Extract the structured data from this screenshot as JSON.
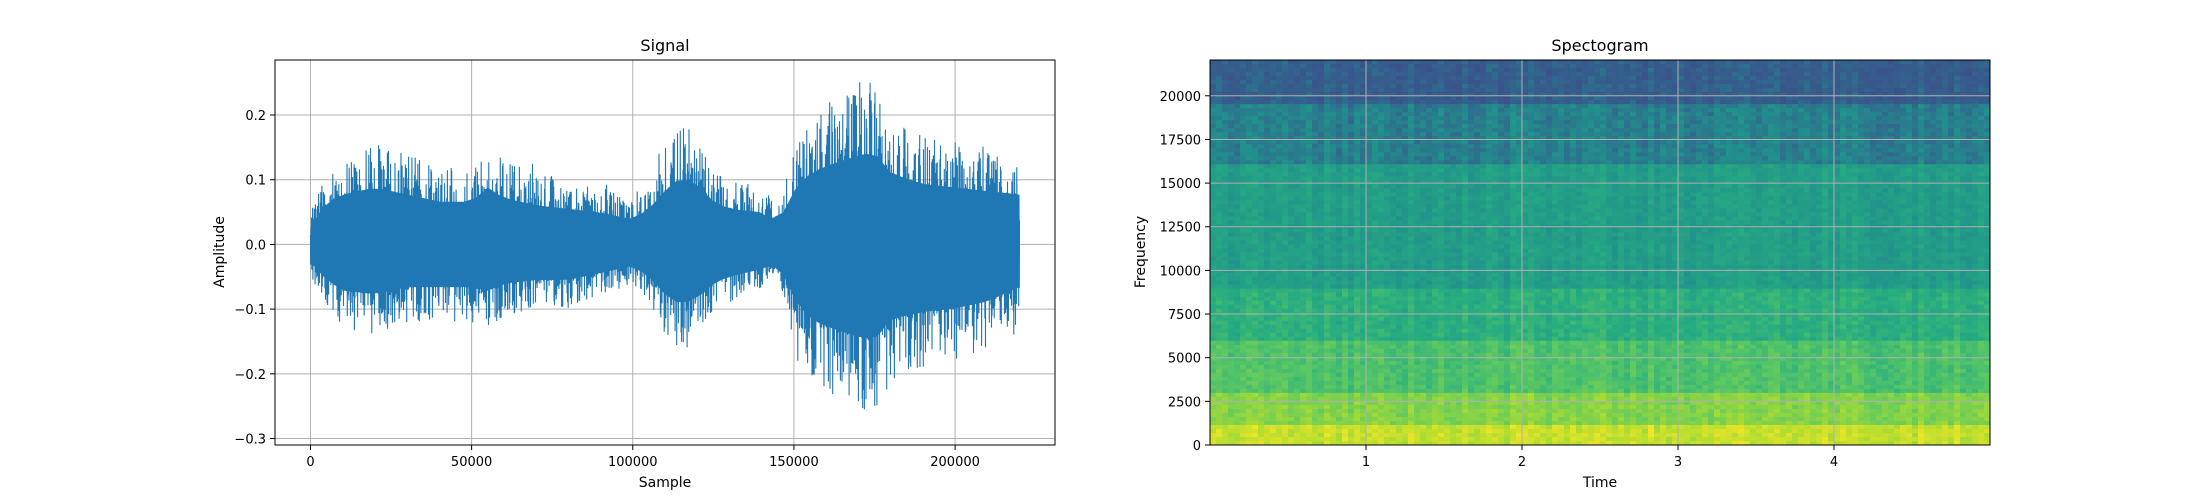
{
  "chart_data": [
    {
      "type": "line",
      "title": "Signal",
      "xlabel": "Sample",
      "ylabel": "Amplitude",
      "xlim": [
        -11000,
        231000
      ],
      "ylim": [
        -0.31,
        0.285
      ],
      "xticks": [
        0,
        50000,
        100000,
        150000,
        200000
      ],
      "xtick_labels": [
        "0",
        "50000",
        "100000",
        "150000",
        "200000"
      ],
      "yticks": [
        -0.3,
        -0.2,
        -0.1,
        0.0,
        0.1,
        0.2
      ],
      "ytick_labels": [
        "−0.3",
        "−0.2",
        "−0.1",
        "0.0",
        "0.1",
        "0.2"
      ],
      "grid": true,
      "series_color": "#1f77b4",
      "envelope": {
        "x": [
          0,
          5000,
          10000,
          20000,
          30000,
          40000,
          50000,
          55000,
          60000,
          70000,
          80000,
          90000,
          95000,
          100000,
          105000,
          110000,
          115000,
          120000,
          125000,
          130000,
          140000,
          145000,
          150000,
          155000,
          160000,
          170000,
          175000,
          180000,
          190000,
          200000,
          210000,
          220000
        ],
        "upper": [
          0.05,
          0.12,
          0.14,
          0.16,
          0.14,
          0.12,
          0.12,
          0.16,
          0.13,
          0.11,
          0.1,
          0.09,
          0.08,
          0.07,
          0.1,
          0.15,
          0.19,
          0.17,
          0.12,
          0.1,
          0.09,
          0.06,
          0.15,
          0.2,
          0.22,
          0.25,
          0.26,
          0.2,
          0.17,
          0.16,
          0.15,
          0.14
        ],
        "lower": [
          -0.05,
          -0.1,
          -0.13,
          -0.14,
          -0.12,
          -0.12,
          -0.12,
          -0.13,
          -0.11,
          -0.1,
          -0.1,
          -0.08,
          -0.07,
          -0.06,
          -0.09,
          -0.14,
          -0.17,
          -0.15,
          -0.11,
          -0.09,
          -0.07,
          -0.05,
          -0.15,
          -0.21,
          -0.23,
          -0.26,
          -0.27,
          -0.21,
          -0.19,
          -0.18,
          -0.16,
          -0.12
        ]
      }
    },
    {
      "type": "heatmap",
      "title": "Spectogram",
      "xlabel": "Time",
      "ylabel": "Frequency",
      "xlim": [
        0,
        5
      ],
      "ylim": [
        0,
        22050
      ],
      "xticks": [
        1,
        2,
        3,
        4
      ],
      "xtick_labels": [
        "1",
        "2",
        "3",
        "4"
      ],
      "yticks": [
        0,
        2500,
        5000,
        7500,
        10000,
        12500,
        15000,
        17500,
        20000
      ],
      "ytick_labels": [
        "0",
        "2500",
        "5000",
        "7500",
        "10000",
        "12500",
        "15000",
        "17500",
        "20000"
      ],
      "grid": true,
      "colormap": "viridis",
      "bands": [
        {
          "f": [
            0,
            1200
          ],
          "level": 0.92
        },
        {
          "f": [
            1200,
            3000
          ],
          "level": 0.82
        },
        {
          "f": [
            3000,
            6000
          ],
          "level": 0.72
        },
        {
          "f": [
            6000,
            9000
          ],
          "level": 0.64
        },
        {
          "f": [
            9000,
            16000
          ],
          "level": 0.56
        },
        {
          "f": [
            16000,
            19500
          ],
          "level": 0.46
        },
        {
          "f": [
            19500,
            22050
          ],
          "level": 0.37
        }
      ]
    }
  ]
}
